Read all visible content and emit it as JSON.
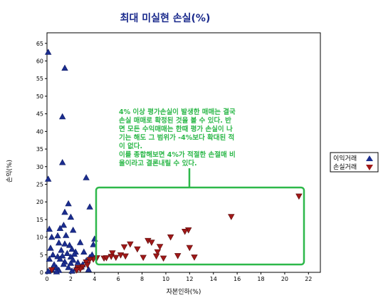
{
  "chart_data": {
    "type": "scatter",
    "title": "최대 미실현 손실(%)",
    "xlabel": "자본인하(%)",
    "ylabel": "손익(%)",
    "xlim": [
      0,
      23
    ],
    "ylim": [
      0,
      68
    ],
    "xticks": [
      "0",
      "2",
      "4",
      "6",
      "8",
      "10",
      "12",
      "14",
      "16",
      "18",
      "20",
      "22"
    ],
    "yticks": [
      "0",
      "5",
      "10",
      "15",
      "20",
      "25",
      "30",
      "35",
      "40",
      "45",
      "50",
      "55",
      "60",
      "65"
    ],
    "legend_position": "right",
    "series": [
      {
        "name": "이익거래",
        "color": "#1b2d8f",
        "marker": "triangle-up",
        "points": [
          [
            0.1,
            62.5
          ],
          [
            1.5,
            58.0
          ],
          [
            1.3,
            44.2
          ],
          [
            1.3,
            31.2
          ],
          [
            3.3,
            26.9
          ],
          [
            0.1,
            26.5
          ],
          [
            1.8,
            19.5
          ],
          [
            1.5,
            17.1
          ],
          [
            3.6,
            18.6
          ],
          [
            2.0,
            15.7
          ],
          [
            1.4,
            13.4
          ],
          [
            1.1,
            12.5
          ],
          [
            0.2,
            12.3
          ],
          [
            2.2,
            12.0
          ],
          [
            1.6,
            10.5
          ],
          [
            0.4,
            10.0
          ],
          [
            0.9,
            10.4
          ],
          [
            4.0,
            9.5
          ],
          [
            1.0,
            8.4
          ],
          [
            1.5,
            8.1
          ],
          [
            2.8,
            8.5
          ],
          [
            1.9,
            7.7
          ],
          [
            0.3,
            6.9
          ],
          [
            2.1,
            6.6
          ],
          [
            3.9,
            7.9
          ],
          [
            1.2,
            6.3
          ],
          [
            2.4,
            5.8
          ],
          [
            3.1,
            5.8
          ],
          [
            1.7,
            5.4
          ],
          [
            0.5,
            5.0
          ],
          [
            2.3,
            5.2
          ],
          [
            3.8,
            5.0
          ],
          [
            1.3,
            4.7
          ],
          [
            2.0,
            4.4
          ],
          [
            0.9,
            4.5
          ],
          [
            3.6,
            4.3
          ],
          [
            0.2,
            3.8
          ],
          [
            1.1,
            3.8
          ],
          [
            2.2,
            3.5
          ],
          [
            3.3,
            3.3
          ],
          [
            1.5,
            3.0
          ],
          [
            2.6,
            2.8
          ],
          [
            1.4,
            2.3
          ],
          [
            2.0,
            2.6
          ],
          [
            0.6,
            2.2
          ],
          [
            3.0,
            2.2
          ],
          [
            0.8,
            1.3
          ],
          [
            1.8,
            1.4
          ],
          [
            2.9,
            1.6
          ],
          [
            2.4,
            1.0
          ],
          [
            0.4,
            0.8
          ],
          [
            3.5,
            0.8
          ],
          [
            1.0,
            0.6
          ],
          [
            0.1,
            0.3
          ],
          [
            2.1,
            0.4
          ],
          [
            0.8,
            0.2
          ]
        ]
      },
      {
        "name": "손실거래",
        "color": "#a01818",
        "marker": "triangle-down",
        "points": [
          [
            21.2,
            21.6
          ],
          [
            15.5,
            15.8
          ],
          [
            11.9,
            12.0
          ],
          [
            11.6,
            11.6
          ],
          [
            10.4,
            10.0
          ],
          [
            8.5,
            9.0
          ],
          [
            8.8,
            8.5
          ],
          [
            7.0,
            8.0
          ],
          [
            6.5,
            7.2
          ],
          [
            9.5,
            7.3
          ],
          [
            12.0,
            7.0
          ],
          [
            5.5,
            5.5
          ],
          [
            7.6,
            6.6
          ],
          [
            9.3,
            5.8
          ],
          [
            6.2,
            4.9
          ],
          [
            11.0,
            4.7
          ],
          [
            9.2,
            4.6
          ],
          [
            5.4,
            4.5
          ],
          [
            4.2,
            4.1
          ],
          [
            4.8,
            4.0
          ],
          [
            5.0,
            4.1
          ],
          [
            5.8,
            4.2
          ],
          [
            6.6,
            4.6
          ],
          [
            8.1,
            4.2
          ],
          [
            9.8,
            4.0
          ],
          [
            12.4,
            4.3
          ],
          [
            3.9,
            3.7
          ],
          [
            3.6,
            3.6
          ],
          [
            3.3,
            2.9
          ],
          [
            3.4,
            2.1
          ],
          [
            3.0,
            1.5
          ],
          [
            2.6,
            1.3
          ],
          [
            2.8,
            0.9
          ],
          [
            2.5,
            0.6
          ],
          [
            0.4,
            0.7
          ]
        ]
      }
    ]
  },
  "annotation": {
    "lines": [
      "4% 이상 평가손실이 발생한 매매는 결국",
      "손실 매매로 확정된 것을 볼 수 있다. 반",
      "면 모든 수익매매는 한때 평가 손실이 나",
      "기는 해도 그 범위가 -4%보다 확대된 적",
      "이 없다.",
      "이를 종합해보면 4%가 적절한 손절매 비",
      "율이라고 결론내릴 수 있다."
    ],
    "color": "#2db84a"
  }
}
